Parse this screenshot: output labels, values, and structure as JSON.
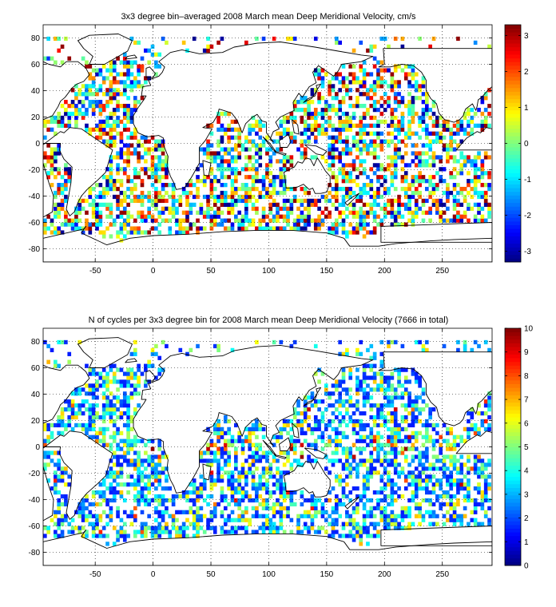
{
  "chart_data": [
    {
      "type": "heatmap",
      "title": "3x3 degree bin–averaged 2008 March mean Deep Meridional Velocity, cm/s",
      "xlabel": "",
      "ylabel": "",
      "xlim": [
        -95,
        293
      ],
      "ylim": [
        -90,
        90
      ],
      "x_ticks": [
        -50,
        0,
        50,
        100,
        150,
        200,
        250
      ],
      "y_ticks": [
        -80,
        -60,
        -40,
        -20,
        0,
        20,
        40,
        60,
        80
      ],
      "grid": true,
      "bin_size_deg": 3,
      "colormap": "jet",
      "colorbar": {
        "range": [
          -3.3,
          3.3
        ],
        "ticks": [
          -3,
          -2,
          -1,
          0,
          1,
          2,
          3
        ]
      },
      "seed": 7
    },
    {
      "type": "heatmap",
      "title": "N of cycles per 3x3 degree bin for 2008 March mean Deep Meridional Velocity (7666 in total)",
      "xlabel": "",
      "ylabel": "",
      "xlim": [
        -95,
        293
      ],
      "ylim": [
        -90,
        90
      ],
      "x_ticks": [
        -50,
        0,
        50,
        100,
        150,
        200,
        250
      ],
      "y_ticks": [
        -80,
        -60,
        -40,
        -20,
        0,
        20,
        40,
        60,
        80
      ],
      "grid": true,
      "bin_size_deg": 3,
      "colormap": "jet",
      "colorbar": {
        "range": [
          0,
          10
        ],
        "ticks": [
          0,
          1,
          2,
          3,
          4,
          5,
          6,
          7,
          8,
          9,
          10
        ]
      },
      "seed": 19
    }
  ]
}
